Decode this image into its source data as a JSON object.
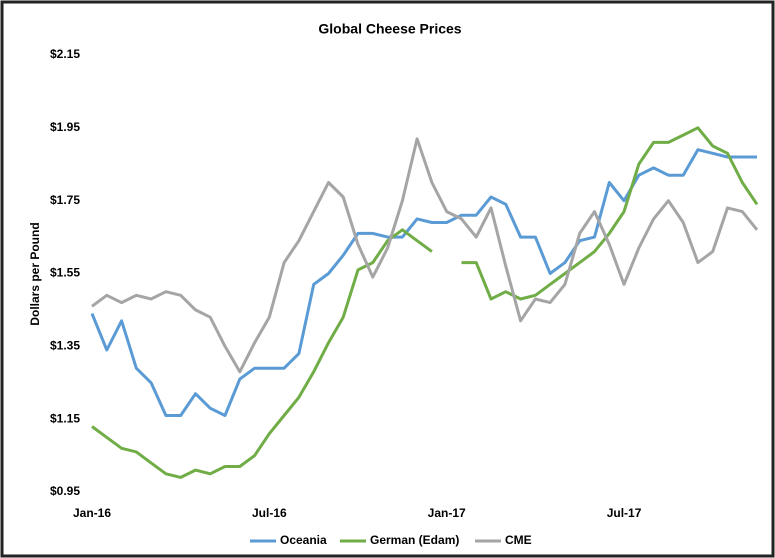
{
  "chart_data": {
    "type": "line",
    "title": "Global Cheese Prices",
    "y_label": "Dollars per Pound",
    "x": [
      0,
      0.5,
      1,
      1.5,
      2,
      2.5,
      3,
      3.5,
      4,
      4.5,
      5,
      5.5,
      6,
      6.5,
      7,
      7.5,
      8,
      8.5,
      9,
      9.5,
      10,
      10.5,
      11,
      11.5,
      12,
      12.5,
      13,
      13.5,
      14,
      14.5,
      15,
      15.5,
      16,
      16.5,
      17,
      17.5,
      18,
      18.5,
      19,
      19.5,
      20,
      20.5,
      21,
      21.5,
      22,
      22.5
    ],
    "xlim": [
      0,
      22.6
    ],
    "xticks": [
      {
        "value": 0,
        "label": "Jan-16"
      },
      {
        "value": 6,
        "label": "Jul-16"
      },
      {
        "value": 12,
        "label": "Jan-17"
      },
      {
        "value": 18,
        "label": "Jul-17"
      }
    ],
    "ylim": [
      0.95,
      2.15
    ],
    "yticks": [
      {
        "value": 0.95,
        "label": "$0.95"
      },
      {
        "value": 1.15,
        "label": "$1.15"
      },
      {
        "value": 1.35,
        "label": "$1.35"
      },
      {
        "value": 1.55,
        "label": "$1.55"
      },
      {
        "value": 1.75,
        "label": "$1.75"
      },
      {
        "value": 1.95,
        "label": "$1.95"
      },
      {
        "value": 2.15,
        "label": "$2.15"
      }
    ],
    "series": [
      {
        "name": "Oceania",
        "color": "#5b9bd5",
        "values": [
          1.44,
          1.34,
          1.42,
          1.29,
          1.25,
          1.16,
          1.16,
          1.22,
          1.18,
          1.16,
          1.26,
          1.29,
          1.29,
          1.29,
          1.33,
          1.52,
          1.55,
          1.6,
          1.66,
          1.66,
          1.65,
          1.65,
          1.7,
          1.69,
          1.69,
          1.71,
          1.71,
          1.76,
          1.74,
          1.65,
          1.65,
          1.55,
          1.58,
          1.64,
          1.65,
          1.8,
          1.75,
          1.82,
          1.84,
          1.82,
          1.82,
          1.89,
          1.88,
          1.87,
          1.87,
          1.87
        ]
      },
      {
        "name": "German (Edam)",
        "color": "#70ad47",
        "values": [
          1.13,
          1.1,
          1.07,
          1.06,
          1.03,
          1.0,
          0.99,
          1.01,
          1.0,
          1.02,
          1.02,
          1.05,
          1.11,
          1.16,
          1.21,
          1.28,
          1.36,
          1.43,
          1.56,
          1.58,
          1.64,
          1.67,
          1.64,
          1.61,
          null,
          1.58,
          1.58,
          1.48,
          1.5,
          1.48,
          1.49,
          1.52,
          1.55,
          1.58,
          1.61,
          1.66,
          1.72,
          1.85,
          1.91,
          1.91,
          1.93,
          1.95,
          1.9,
          1.88,
          1.8,
          1.74
        ]
      },
      {
        "name": "CME",
        "color": "#a5a5a5",
        "values": [
          1.46,
          1.49,
          1.47,
          1.49,
          1.48,
          1.5,
          1.49,
          1.45,
          1.43,
          1.35,
          1.28,
          1.36,
          1.43,
          1.58,
          1.64,
          1.72,
          1.8,
          1.76,
          1.63,
          1.54,
          1.62,
          1.75,
          1.92,
          1.8,
          1.72,
          1.7,
          1.65,
          1.73,
          1.57,
          1.42,
          1.48,
          1.47,
          1.52,
          1.66,
          1.72,
          1.63,
          1.52,
          1.62,
          1.7,
          1.75,
          1.69,
          1.58,
          1.61,
          1.73,
          1.72,
          1.67
        ]
      }
    ]
  }
}
